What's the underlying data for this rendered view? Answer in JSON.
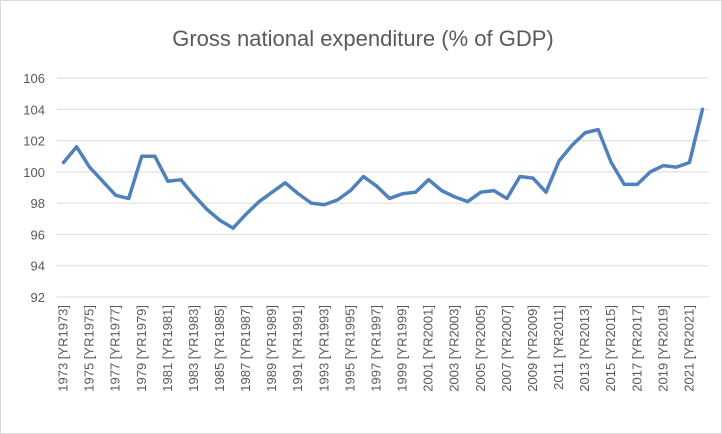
{
  "chart_data": {
    "type": "line",
    "title": "Gross national expenditure (% of GDP)",
    "xlabel": "",
    "ylabel": "",
    "ylim": [
      92,
      106
    ],
    "yticks": [
      92,
      94,
      96,
      98,
      100,
      102,
      104,
      106
    ],
    "grid": true,
    "legend": "none",
    "line_color": "#4f81bd",
    "x": [
      "1973 [YR1973]",
      "1974 [YR1974]",
      "1975 [YR1975]",
      "1976 [YR1976]",
      "1977 [YR1977]",
      "1978 [YR1978]",
      "1979 [YR1979]",
      "1980 [YR1980]",
      "1981 [YR1981]",
      "1982 [YR1982]",
      "1983 [YR1983]",
      "1984 [YR1984]",
      "1985 [YR1985]",
      "1986 [YR1986]",
      "1987 [YR1987]",
      "1988 [YR1988]",
      "1989 [YR1989]",
      "1990 [YR1990]",
      "1991 [YR1991]",
      "1992 [YR1992]",
      "1993 [YR1993]",
      "1994 [YR1994]",
      "1995 [YR1995]",
      "1996 [YR1996]",
      "1997 [YR1997]",
      "1998 [YR1998]",
      "1999 [YR1999]",
      "2000 [YR2000]",
      "2001 [YR2001]",
      "2002 [YR2002]",
      "2003 [YR2003]",
      "2004 [YR2004]",
      "2005 [YR2005]",
      "2006 [YR2006]",
      "2007 [YR2007]",
      "2008 [YR2008]",
      "2009 [YR2009]",
      "2010 [YR2010]",
      "2011 [YR2011]",
      "2012 [YR2012]",
      "2013 [YR2013]",
      "2014 [YR2014]",
      "2015 [YR2015]",
      "2016 [YR2016]",
      "2017 [YR2017]",
      "2018 [YR2018]",
      "2019 [YR2019]",
      "2020 [YR2020]",
      "2021 [YR2021]",
      "2022 [YR2022]"
    ],
    "xtick_labels": [
      "1973 [YR1973]",
      "1975 [YR1975]",
      "1977 [YR1977]",
      "1979 [YR1979]",
      "1981 [YR1981]",
      "1983 [YR1983]",
      "1985 [YR1985]",
      "1987 [YR1987]",
      "1989 [YR1989]",
      "1991 [YR1991]",
      "1993 [YR1993]",
      "1995 [YR1995]",
      "1997 [YR1997]",
      "1999 [YR1999]",
      "2001 [YR2001]",
      "2003 [YR2003]",
      "2005 [YR2005]",
      "2007 [YR2007]",
      "2009 [YR2009]",
      "2011 [YR2011]",
      "2013 [YR2013]",
      "2015 [YR2015]",
      "2017 [YR2017]",
      "2019 [YR2019]",
      "2021 [YR2021]"
    ],
    "series": [
      {
        "values": [
          100.6,
          101.6,
          100.3,
          99.4,
          98.5,
          98.3,
          101.0,
          101.0,
          99.4,
          99.5,
          98.5,
          97.6,
          96.9,
          96.4,
          97.3,
          98.1,
          98.7,
          99.3,
          98.6,
          98.0,
          97.9,
          98.2,
          98.8,
          99.7,
          99.1,
          98.3,
          98.6,
          98.7,
          99.5,
          98.8,
          98.4,
          98.1,
          98.7,
          98.8,
          98.3,
          99.7,
          99.6,
          98.7,
          100.7,
          101.7,
          102.5,
          102.7,
          100.6,
          99.2,
          99.2,
          100.0,
          100.4,
          100.3,
          100.6,
          104.0
        ]
      }
    ]
  }
}
